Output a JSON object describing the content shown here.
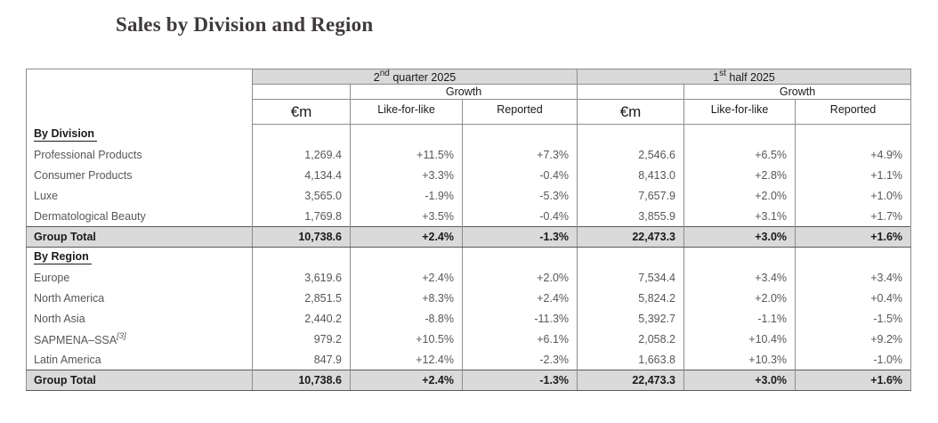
{
  "page_title": "Sales by Division and Region",
  "table": {
    "periods": [
      {
        "num": "2",
        "sup": "nd",
        "rest": " quarter 2025"
      },
      {
        "num": "1",
        "sup": "st",
        "rest": " half 2025"
      }
    ],
    "growth_label": "Growth",
    "unit_label": "€m",
    "col_headers": [
      "Like-for-like",
      "Reported"
    ],
    "sections": [
      {
        "title": "By Division",
        "rows": [
          {
            "label": "Professional Products",
            "q2": [
              "1,269.4",
              "+11.5%",
              "+7.3%"
            ],
            "h1": [
              "2,546.6",
              "+6.5%",
              "+4.9%"
            ]
          },
          {
            "label": "Consumer Products",
            "q2": [
              "4,134.4",
              "+3.3%",
              "-0.4%"
            ],
            "h1": [
              "8,413.0",
              "+2.8%",
              "+1.1%"
            ]
          },
          {
            "label": "Luxe",
            "q2": [
              "3,565.0",
              "-1.9%",
              "-5.3%"
            ],
            "h1": [
              "7,657.9",
              "+2.0%",
              "+1.0%"
            ]
          },
          {
            "label": "Dermatological Beauty",
            "q2": [
              "1,769.8",
              "+3.5%",
              "-0.4%"
            ],
            "h1": [
              "3,855.9",
              "+3.1%",
              "+1.7%"
            ]
          }
        ],
        "total": {
          "label": "Group Total",
          "q2": [
            "10,738.6",
            "+2.4%",
            "-1.3%"
          ],
          "h1": [
            "22,473.3",
            "+3.0%",
            "+1.6%"
          ]
        }
      },
      {
        "title": "By Region",
        "rows": [
          {
            "label": "Europe",
            "q2": [
              "3,619.6",
              "+2.4%",
              "+2.0%"
            ],
            "h1": [
              "7,534.4",
              "+3.4%",
              "+3.4%"
            ]
          },
          {
            "label": "North America",
            "q2": [
              "2,851.5",
              "+8.3%",
              "+2.4%"
            ],
            "h1": [
              "5,824.2",
              "+2.0%",
              "+0.4%"
            ]
          },
          {
            "label": "North Asia",
            "q2": [
              "2,440.2",
              "-8.8%",
              "-11.3%"
            ],
            "h1": [
              "5,392.7",
              "-1.1%",
              "-1.5%"
            ]
          },
          {
            "label": "SAPMENA–SSA",
            "label_sup": "[3]",
            "q2": [
              "979.2",
              "+10.5%",
              "+6.1%"
            ],
            "h1": [
              "2,058.2",
              "+10.4%",
              "+9.2%"
            ]
          },
          {
            "label": "Latin America",
            "q2": [
              "847.9",
              "+12.4%",
              "-2.3%"
            ],
            "h1": [
              "1,663.8",
              "+10.3%",
              "-1.0%"
            ]
          }
        ],
        "total": {
          "label": "Group Total",
          "q2": [
            "10,738.6",
            "+2.4%",
            "-1.3%"
          ],
          "h1": [
            "22,473.3",
            "+3.0%",
            "+1.6%"
          ]
        }
      }
    ]
  },
  "colors": {
    "header_fill": "#d9d9d9",
    "total_fill": "#dadada",
    "grid_line": "#8d8d8d",
    "strong_line": "#5a5a5a",
    "body_text": "#56575b",
    "strong_text": "#1a1a1a",
    "title_text": "#3e3a39"
  }
}
